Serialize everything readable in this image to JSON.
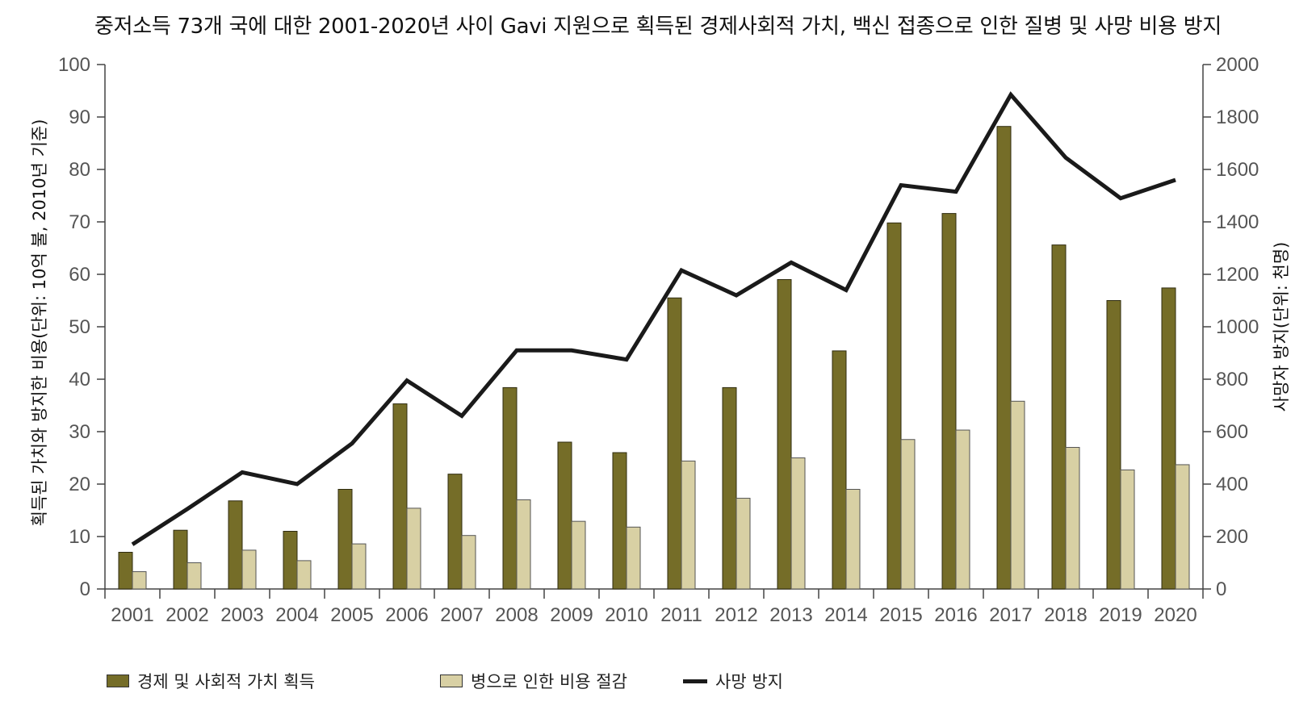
{
  "chart_data": {
    "type": "bar+line",
    "title": "중저소득 73개 국에 대한 2001-2020년 사이 Gavi 지원으로 획득된 경제사회적 가치, 백신 접종으로 인한 질병 및 사망 비용 방지",
    "categories": [
      "2001",
      "2002",
      "2003",
      "2004",
      "2005",
      "2006",
      "2007",
      "2008",
      "2009",
      "2010",
      "2011",
      "2012",
      "2013",
      "2014",
      "2015",
      "2016",
      "2017",
      "2018",
      "2019",
      "2020"
    ],
    "ylabel_left": "획득된 가치와 방지한 비용(단위: 10억 불, 2010년 기준)",
    "ylabel_right": "사망자 방지(단위: 천명)",
    "ylim_left": [
      0,
      100
    ],
    "ylim_right": [
      0,
      2000
    ],
    "yticks_left": [
      "0",
      "10",
      "20",
      "30",
      "40",
      "50",
      "60",
      "70",
      "80",
      "90",
      "100"
    ],
    "yticks_right": [
      "0",
      "200",
      "400",
      "600",
      "800",
      "1000",
      "1200",
      "1400",
      "1600",
      "1800",
      "2000"
    ],
    "series": [
      {
        "name": "경제 및 사회적 가치 획득",
        "type": "bar",
        "axis": "left",
        "color": "#756d28",
        "values": [
          7,
          11.2,
          16.8,
          11,
          19,
          35.3,
          21.9,
          38.4,
          28,
          26,
          55.5,
          38.4,
          59,
          45.4,
          69.8,
          71.6,
          88.2,
          65.6,
          55,
          57.4
        ]
      },
      {
        "name": "병으로 인한 비용 절감",
        "type": "bar",
        "axis": "left",
        "color": "#d8d0a4",
        "values": [
          3.3,
          5,
          7.4,
          5.4,
          8.6,
          15.4,
          10.2,
          17,
          12.9,
          11.8,
          24.4,
          17.3,
          25,
          19,
          28.5,
          30.3,
          35.8,
          27,
          22.7,
          23.7
        ]
      },
      {
        "name": "사망 방지",
        "type": "line",
        "axis": "right",
        "color": "#1a1a1a",
        "values": [
          170,
          305,
          445,
          400,
          555,
          795,
          660,
          910,
          910,
          875,
          1215,
          1120,
          1245,
          1140,
          1540,
          1515,
          1885,
          1645,
          1490,
          1560
        ]
      }
    ]
  }
}
